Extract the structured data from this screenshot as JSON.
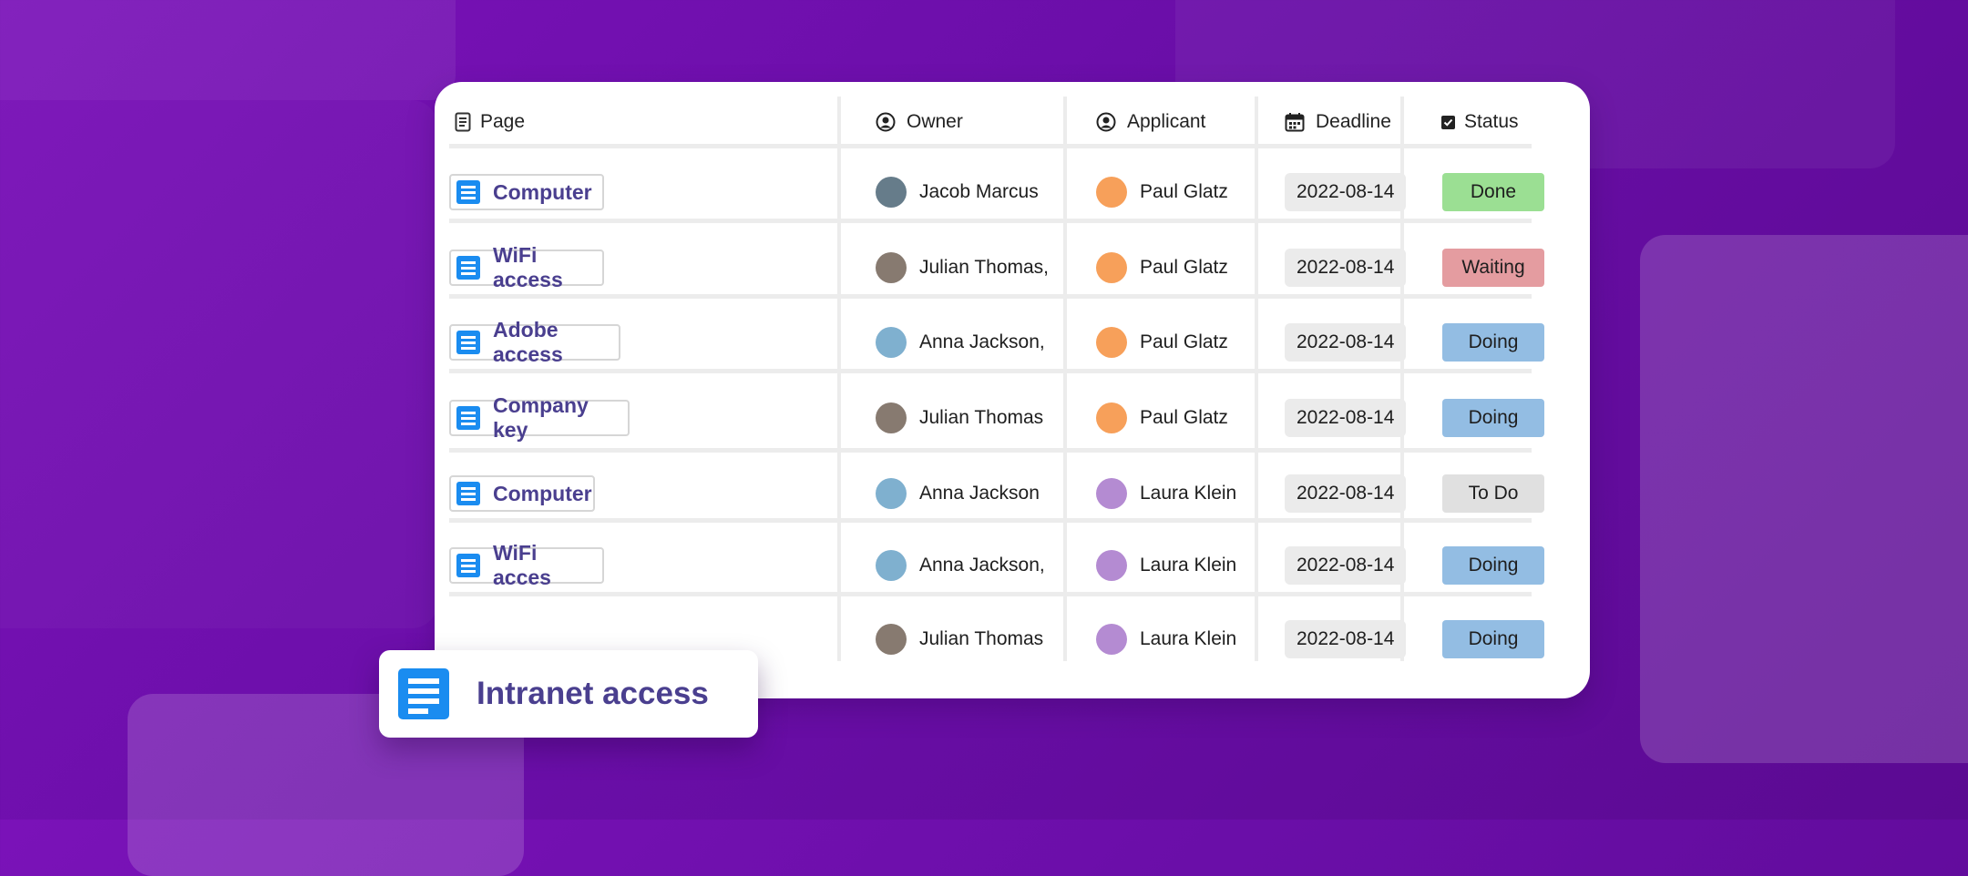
{
  "columns": {
    "page": "Page",
    "owner": "Owner",
    "applicant": "Applicant",
    "deadline": "Deadline",
    "status": "Status"
  },
  "icons": {
    "page": "document-icon",
    "owner": "user-circle-icon",
    "applicant": "user-circle-icon",
    "deadline": "calendar-icon",
    "status": "checkbox-icon",
    "row_page": "document-icon"
  },
  "rows": [
    {
      "page": "Computer",
      "owner": "Jacob Marcus",
      "owner_color": "#667c8a",
      "applicant": "Paul Glatz",
      "applicant_color": "#f7a05a",
      "deadline": "2022-08-14",
      "status": "Done",
      "status_color": "#9bdf93"
    },
    {
      "page": "WiFi access",
      "owner": "Julian Thomas,",
      "owner_color": "#877a70",
      "applicant": "Paul Glatz",
      "applicant_color": "#f7a05a",
      "deadline": "2022-08-14",
      "status": "Waiting",
      "status_color": "#e49ca0"
    },
    {
      "page": "Adobe access",
      "owner": "Anna Jackson,",
      "owner_color": "#7fb0cf",
      "applicant": "Paul Glatz",
      "applicant_color": "#f7a05a",
      "deadline": "2022-08-14",
      "status": "Doing",
      "status_color": "#93bde3"
    },
    {
      "page": "Company key",
      "owner": "Julian Thomas",
      "owner_color": "#877a70",
      "applicant": "Paul Glatz",
      "applicant_color": "#f7a05a",
      "deadline": "2022-08-14",
      "status": "Doing",
      "status_color": "#93bde3"
    },
    {
      "page": "Computer",
      "owner": "Anna Jackson",
      "owner_color": "#7fb0cf",
      "applicant": "Laura Klein",
      "applicant_color": "#b48bd2",
      "deadline": "2022-08-14",
      "status": "To Do",
      "status_color": "#e0e0e0"
    },
    {
      "page": "WiFi acces",
      "owner": "Anna Jackson,",
      "owner_color": "#7fb0cf",
      "applicant": "Laura Klein",
      "applicant_color": "#b48bd2",
      "deadline": "2022-08-14",
      "status": "Doing",
      "status_color": "#93bde3"
    },
    {
      "page": "",
      "owner": "Julian Thomas",
      "owner_color": "#877a70",
      "applicant": "Laura Klein",
      "applicant_color": "#b48bd2",
      "deadline": "2022-08-14",
      "status": "Doing",
      "status_color": "#93bde3"
    }
  ],
  "dragged_page": {
    "label": "Intranet access",
    "icon": "document-icon"
  },
  "colors": {
    "accent_text": "#4a3f8f",
    "doc_icon": "#1a8cf0",
    "background": "#6a0ea8"
  }
}
